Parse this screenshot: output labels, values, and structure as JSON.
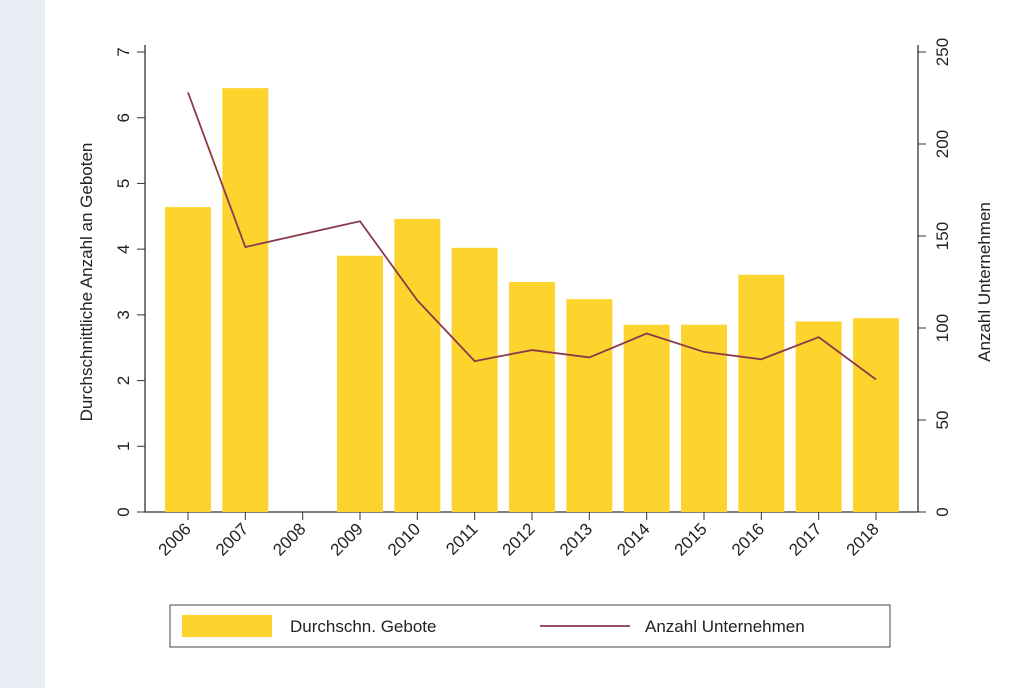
{
  "chart_data": {
    "type": "bar",
    "categories": [
      "2006",
      "2007",
      "2008",
      "2009",
      "2010",
      "2011",
      "2012",
      "2013",
      "2014",
      "2015",
      "2016",
      "2017",
      "2018"
    ],
    "y_label": "Durchschnittliche Anzahl an Geboten",
    "y2_label": "Anzahl Unternehmen",
    "series": [
      {
        "name": "Durchschn. Gebote",
        "type": "bar",
        "color": "#fdd42e",
        "values": [
          4.64,
          6.45,
          null,
          3.9,
          4.46,
          4.02,
          3.5,
          3.24,
          2.85,
          2.85,
          3.61,
          2.9,
          2.95
        ]
      },
      {
        "name": "Anzahl Unternehmen",
        "type": "line",
        "axis": "y2",
        "color": "#8b3a4a",
        "values": [
          228,
          144,
          151,
          158,
          115,
          82,
          88,
          84,
          97,
          87,
          83,
          95,
          72
        ]
      }
    ],
    "ylim": [
      0,
      7
    ],
    "yticks": [
      0,
      1,
      2,
      3,
      4,
      5,
      6,
      7
    ],
    "y2lim": [
      0,
      250
    ],
    "y2ticks": [
      0,
      50,
      100,
      150,
      200,
      250
    ],
    "grid": false,
    "legend": "bottom"
  }
}
